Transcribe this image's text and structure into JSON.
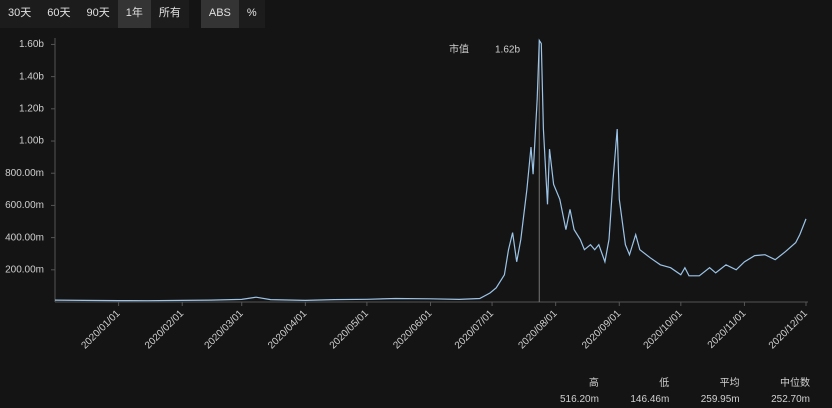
{
  "toolbar": {
    "range_buttons": [
      "30天",
      "60天",
      "90天",
      "1年",
      "所有"
    ],
    "mode_buttons": [
      "ABS",
      "%"
    ]
  },
  "chart_data": {
    "type": "line",
    "color": "#9cc4e8",
    "x": [
      "2019/12/01",
      "2019/12/15",
      "2020/01/01",
      "2020/01/15",
      "2020/02/01",
      "2020/02/15",
      "2020/03/01",
      "2020/03/08",
      "2020/03/15",
      "2020/04/01",
      "2020/04/15",
      "2020/05/01",
      "2020/05/15",
      "2020/06/01",
      "2020/06/15",
      "2020/06/25",
      "2020/06/30",
      "2020/07/03",
      "2020/07/07",
      "2020/07/09",
      "2020/07/11",
      "2020/07/13",
      "2020/07/15",
      "2020/07/18",
      "2020/07/20",
      "2020/07/21",
      "2020/07/23",
      "2020/07/24",
      "2020/07/25",
      "2020/07/26",
      "2020/07/28",
      "2020/07/29",
      "2020/07/31",
      "2020/08/03",
      "2020/08/06",
      "2020/08/08",
      "2020/08/10",
      "2020/08/13",
      "2020/08/15",
      "2020/08/18",
      "2020/08/20",
      "2020/08/22",
      "2020/08/25",
      "2020/08/27",
      "2020/08/29",
      "2020/08/31",
      "2020/09/01",
      "2020/09/04",
      "2020/09/06",
      "2020/09/09",
      "2020/09/11",
      "2020/09/16",
      "2020/09/21",
      "2020/09/26",
      "2020/10/01",
      "2020/10/03",
      "2020/10/05",
      "2020/10/10",
      "2020/10/15",
      "2020/10/18",
      "2020/10/23",
      "2020/10/28",
      "2020/11/01",
      "2020/11/06",
      "2020/11/11",
      "2020/11/16",
      "2020/11/21",
      "2020/11/26",
      "2020/11/28",
      "2020/12/01"
    ],
    "values": [
      12000000,
      10000000,
      9000000,
      8000000,
      10000000,
      12000000,
      16000000,
      30000000,
      15000000,
      10000000,
      15000000,
      17000000,
      22000000,
      20000000,
      16000000,
      22000000,
      56000000,
      88000000,
      169000000,
      325000000,
      431000000,
      250000000,
      388000000,
      700000000,
      963000000,
      794000000,
      1263000000,
      1625000000,
      1606000000,
      1075000000,
      606000000,
      950000000,
      731000000,
      638000000,
      450000000,
      575000000,
      450000000,
      388000000,
      325000000,
      356000000,
      325000000,
      356000000,
      250000000,
      388000000,
      763000000,
      1075000000,
      638000000,
      356000000,
      294000000,
      419000000,
      325000000,
      275000000,
      231000000,
      213000000,
      169000000,
      213000000,
      163000000,
      163000000,
      213000000,
      181000000,
      231000000,
      200000000,
      250000000,
      288000000,
      294000000,
      263000000,
      313000000,
      369000000,
      419000000,
      516200000
    ],
    "xlim": [
      "2019/12/01",
      "2020/12/01"
    ],
    "xticks": [
      "2020/01/01",
      "2020/02/01",
      "2020/03/01",
      "2020/04/01",
      "2020/05/01",
      "2020/06/01",
      "2020/07/01",
      "2020/08/01",
      "2020/09/01",
      "2020/10/01",
      "2020/11/01",
      "2020/12/01"
    ],
    "ylim": [
      0,
      1640000000
    ],
    "yticks": [
      {
        "value": 200000000,
        "label": "200.00m"
      },
      {
        "value": 400000000,
        "label": "400.00m"
      },
      {
        "value": 600000000,
        "label": "600.00m"
      },
      {
        "value": 800000000,
        "label": "800.00m"
      },
      {
        "value": 1000000000,
        "label": "1.00b"
      },
      {
        "value": 1200000000,
        "label": "1.20b"
      },
      {
        "value": 1400000000,
        "label": "1.40b"
      },
      {
        "value": 1600000000,
        "label": "1.60b"
      }
    ],
    "grid": false,
    "tooltip": {
      "label": "市值",
      "value": "1.62b"
    }
  },
  "stats": [
    {
      "label": "高",
      "value": "516.20m"
    },
    {
      "label": "低",
      "value": "146.46m"
    },
    {
      "label": "平均",
      "value": "259.95m"
    },
    {
      "label": "中位数",
      "value": "252.70m"
    }
  ]
}
